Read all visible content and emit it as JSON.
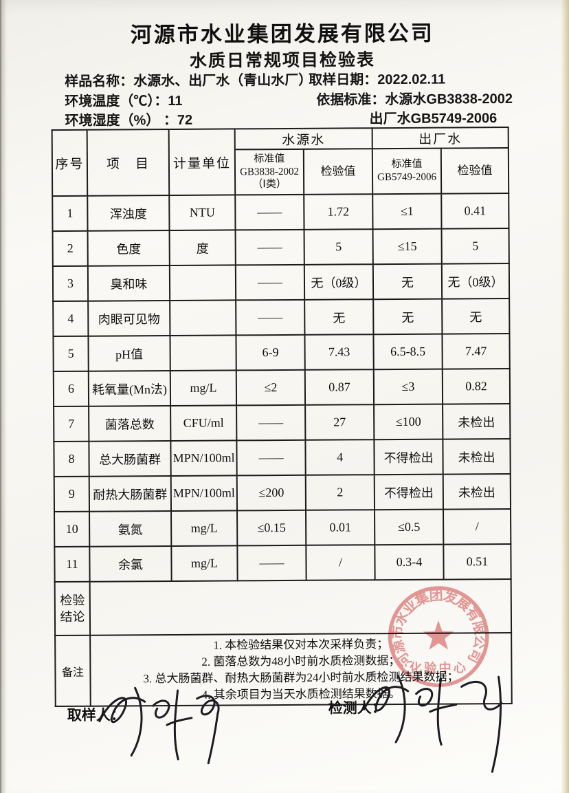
{
  "header": {
    "company": "河源市水业集团发展有限公司",
    "title": "水质日常规项目检验表"
  },
  "meta": {
    "sample_name_label": "样品名称：",
    "sample_name_value": "水源水、出厂水（青山水厂）",
    "sample_date_label": "取样日期：",
    "sample_date_value": "2022.02.11",
    "env_temp_label": "环境温度（℃）：",
    "env_temp_value": "11",
    "standard_label": "依据标准：",
    "standard_value_line1": "水源水GB3838-2002",
    "standard_value_line2": "出厂水GB5749-2006",
    "env_humidity_label": "环境湿度（%） ：",
    "env_humidity_value": "72"
  },
  "table": {
    "headers": {
      "seq": "序号",
      "item": "项　目",
      "unit": "计量单位",
      "group_source": "水源水",
      "group_outlet": "出厂水",
      "source_std_line1": "标准值",
      "source_std_line2": "GB3838-2002",
      "source_std_line3": "（Ⅰ类）",
      "value_col_source": "检验值",
      "outlet_std_line1": "标准值",
      "outlet_std_line2": "GB5749-2006",
      "value_col_outlet": "检验值"
    },
    "rows": [
      {
        "seq": "1",
        "item": "浑浊度",
        "unit": "NTU",
        "source_std": "——",
        "source_val": "1.72",
        "outlet_std": "≤1",
        "outlet_val": "0.41"
      },
      {
        "seq": "2",
        "item": "色度",
        "unit": "度",
        "source_std": "——",
        "source_val": "5",
        "outlet_std": "≤15",
        "outlet_val": "5"
      },
      {
        "seq": "3",
        "item": "臭和味",
        "unit": "",
        "source_std": "——",
        "source_val": "无（0级）",
        "outlet_std": "无",
        "outlet_val": "无（0级）"
      },
      {
        "seq": "4",
        "item": "肉眼可见物",
        "unit": "",
        "source_std": "——",
        "source_val": "无",
        "outlet_std": "无",
        "outlet_val": "无"
      },
      {
        "seq": "5",
        "item": "pH值",
        "unit": "",
        "source_std": "6-9",
        "source_val": "7.43",
        "outlet_std": "6.5-8.5",
        "outlet_val": "7.47"
      },
      {
        "seq": "6",
        "item": "耗氧量(Mn法)",
        "unit": "mg/L",
        "source_std": "≤2",
        "source_val": "0.87",
        "outlet_std": "≤3",
        "outlet_val": "0.82"
      },
      {
        "seq": "7",
        "item": "菌落总数",
        "unit": "CFU/ml",
        "source_std": "——",
        "source_val": "27",
        "outlet_std": "≤100",
        "outlet_val": "未检出"
      },
      {
        "seq": "8",
        "item": "总大肠菌群",
        "unit": "MPN/100ml",
        "source_std": "——",
        "source_val": "4",
        "outlet_std": "不得检出",
        "outlet_val": "未检出"
      },
      {
        "seq": "9",
        "item": "耐热大肠菌群",
        "unit": "MPN/100ml",
        "source_std": "≤200",
        "source_val": "2",
        "outlet_std": "不得检出",
        "outlet_val": "未检出"
      },
      {
        "seq": "10",
        "item": "氨氮",
        "unit": "mg/L",
        "source_std": "≤0.15",
        "source_val": "0.01",
        "outlet_std": "≤0.5",
        "outlet_val": "/"
      },
      {
        "seq": "11",
        "item": "余氯",
        "unit": "mg/L",
        "source_std": "——",
        "source_val": "/",
        "outlet_std": "0.3-4",
        "outlet_val": "0.51"
      }
    ],
    "conclusion": {
      "label_line1": "检验",
      "label_line2": "结论",
      "value": ""
    }
  },
  "remarks": {
    "label": "备注",
    "lines": [
      "1. 本检验结果仅对本次采样负责；",
      "2. 菌落总数为48小时前水质检测数据；",
      "3. 总大肠菌群、耐热大肠菌群为24小时前水质检测结果数据；",
      "4. 其余项目为当天水质检测结果数据。"
    ]
  },
  "footer": {
    "sampler_label": "取样人：",
    "tester_label": "检测人："
  },
  "stamp": {
    "ring_text": "河源市水业集团发展有限公司",
    "center_text": "化验中心",
    "color": "#dd7f7c"
  }
}
